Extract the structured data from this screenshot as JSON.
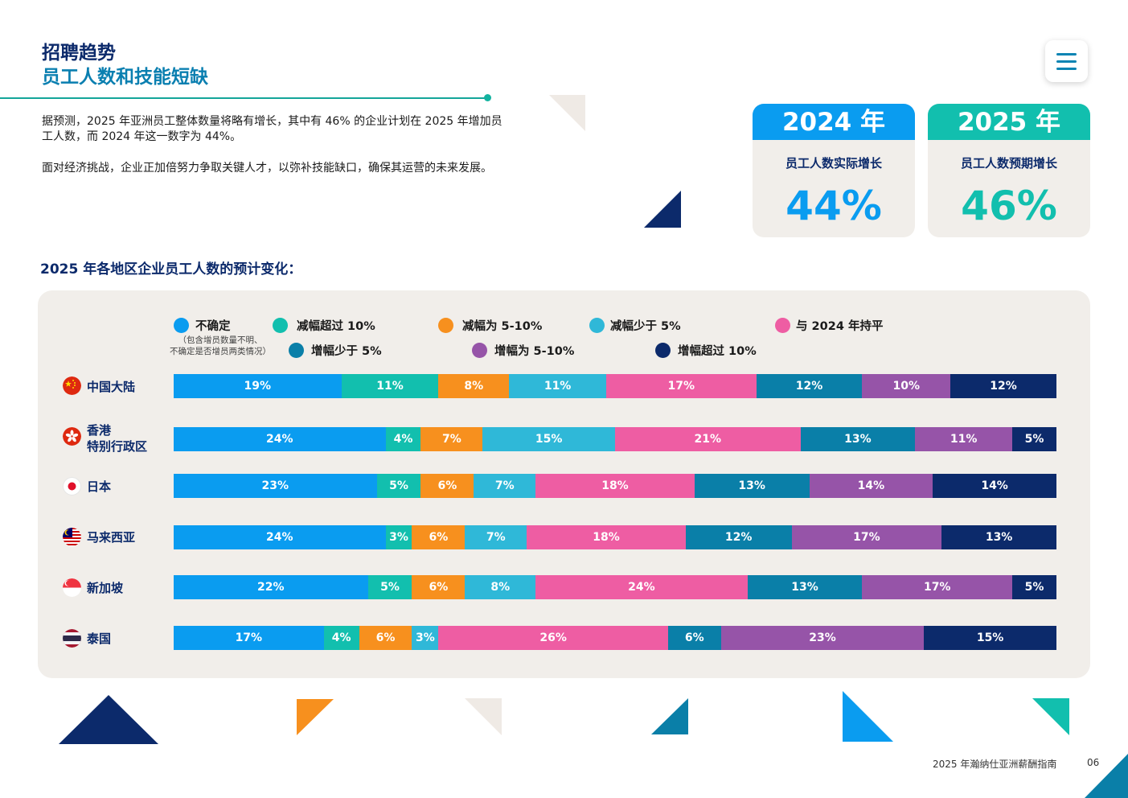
{
  "header": {
    "title_line1": "招聘趋势",
    "title_line2": "员工人数和技能短缺"
  },
  "intro": {
    "paragraph1": "据预测，2025 年亚洲员工整体数量将略有增长，其中有 46% 的企业计划在 2025 年增加员工人数，而 2024 年这一数字为 44%。",
    "paragraph2": "面对经济挑战，企业正加倍努力争取关键人才，以弥补技能缺口，确保其运营的未来发展。"
  },
  "cards": [
    {
      "year": "2024 年",
      "label": "员工人数实际增长",
      "value": "44%",
      "color": "#0a9cf0"
    },
    {
      "year": "2025 年",
      "label": "员工人数预期增长",
      "value": "46%",
      "color": "#12bfae"
    }
  ],
  "section_title": "2025 年各地区企业员工人数的预计变化：",
  "legend": {
    "items": [
      {
        "label": "不确定",
        "color": "#0a9cf0"
      },
      {
        "label": "减幅超过 10%",
        "color": "#12bfae"
      },
      {
        "label": "减幅为 5-10%",
        "color": "#f7901e"
      },
      {
        "label": "减幅少于 5%",
        "color": "#2fb8d8"
      },
      {
        "label": "与 2024 年持平",
        "color": "#ee5da3"
      },
      {
        "label": "增幅少于 5%",
        "color": "#0a7fa8"
      },
      {
        "label": "增幅为 5-10%",
        "color": "#9654a8"
      },
      {
        "label": "增幅超过 10%",
        "color": "#0c2a6b"
      }
    ],
    "note_line1": "（包含增员数量不明、",
    "note_line2": "不确定是否增员两类情况）"
  },
  "chart_data": {
    "type": "bar",
    "orientation": "horizontal",
    "stacked": true,
    "title": "2025 年各地区企业员工人数的预计变化：",
    "categories": [
      "中国大陆",
      "香港特别行政区",
      "日本",
      "马来西亚",
      "新加坡",
      "泰国"
    ],
    "category_lines": [
      [
        "中国大陆"
      ],
      [
        "香港",
        "特别行政区"
      ],
      [
        "日本"
      ],
      [
        "马来西亚"
      ],
      [
        "新加坡"
      ],
      [
        "泰国"
      ]
    ],
    "series": [
      {
        "name": "不确定",
        "values": [
          19,
          24,
          23,
          24,
          22,
          17
        ]
      },
      {
        "name": "减幅超过 10%",
        "values": [
          11,
          4,
          5,
          3,
          5,
          4
        ]
      },
      {
        "name": "减幅为 5-10%",
        "values": [
          8,
          7,
          6,
          6,
          6,
          6
        ]
      },
      {
        "name": "减幅少于 5%",
        "values": [
          11,
          15,
          7,
          7,
          8,
          3
        ]
      },
      {
        "name": "与 2024 年持平",
        "values": [
          17,
          21,
          18,
          18,
          24,
          26
        ]
      },
      {
        "name": "增幅少于 5%",
        "values": [
          12,
          13,
          13,
          12,
          13,
          6
        ]
      },
      {
        "name": "增幅为 5-10%",
        "values": [
          10,
          11,
          14,
          17,
          17,
          23
        ]
      },
      {
        "name": "增幅超过 10%",
        "values": [
          12,
          5,
          14,
          13,
          5,
          15
        ]
      }
    ],
    "value_suffix": "%"
  },
  "footer": {
    "text": "2025 年瀚纳仕亚洲薪酬指南",
    "page": "06"
  }
}
